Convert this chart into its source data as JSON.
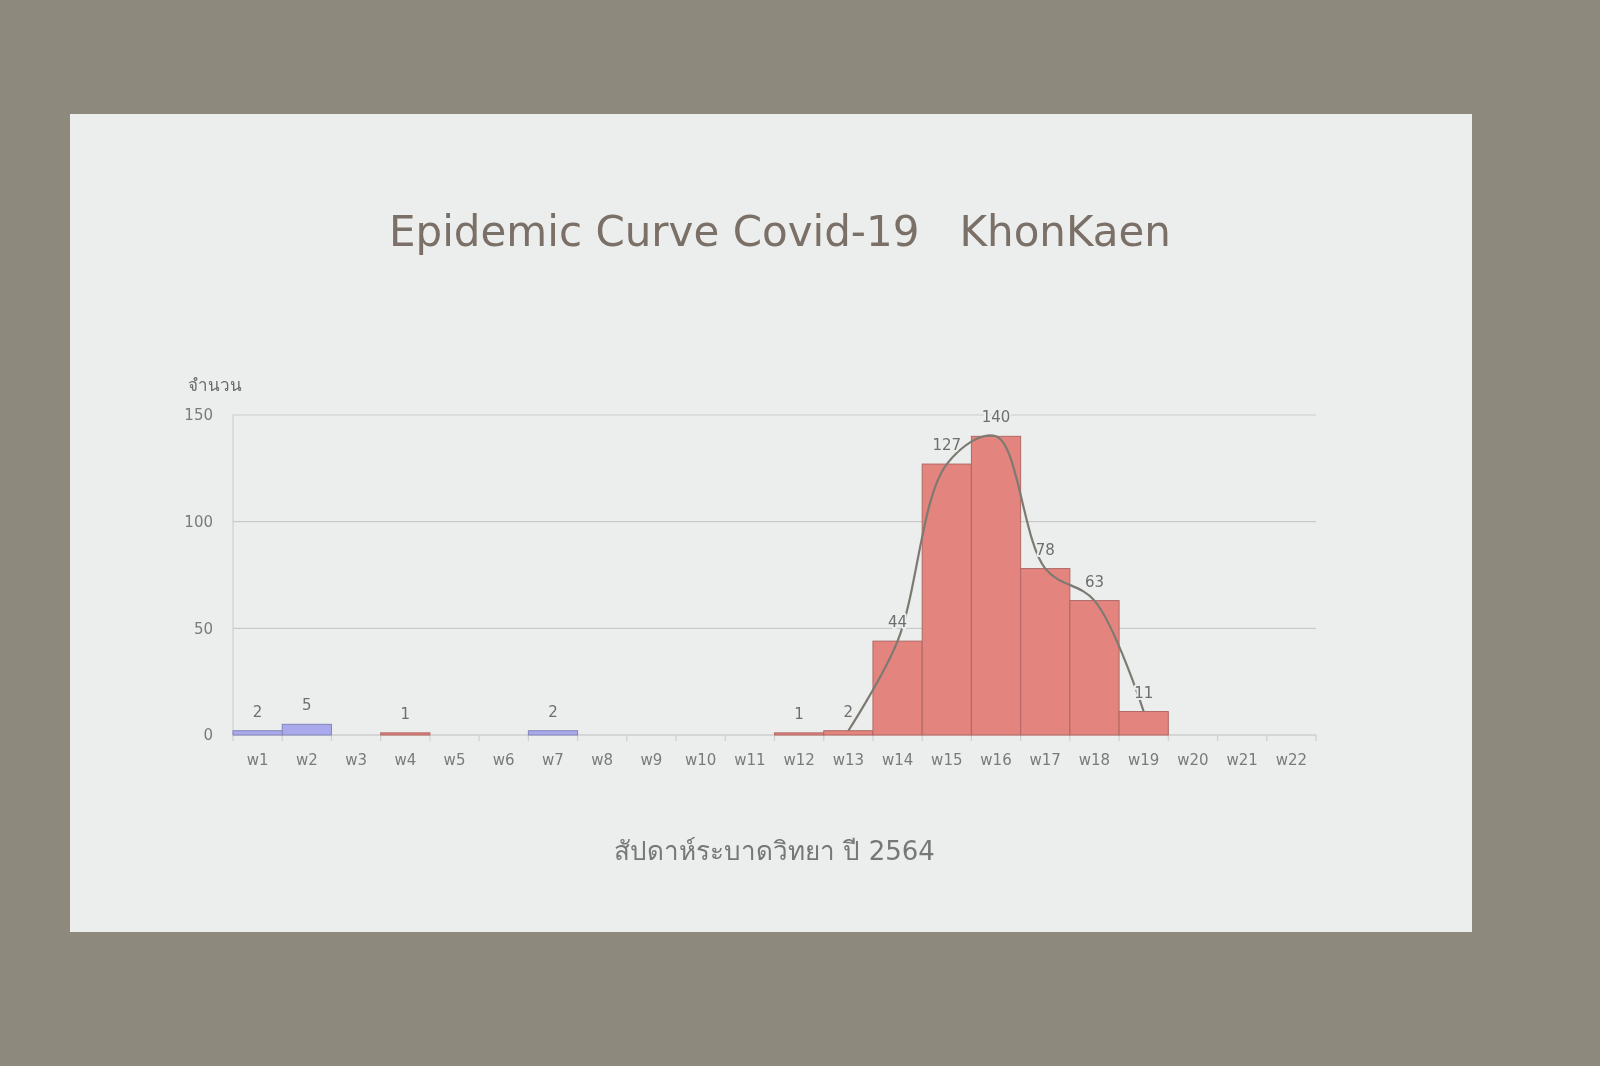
{
  "chart_data": {
    "type": "bar",
    "title": "Epidemic Curve Covid-19   KhonKaen",
    "xlabel": "สัปดาห์ระบาดวิทยา ปี 2564",
    "ylabel": "จำนวน",
    "categories": [
      "w1",
      "w2",
      "w3",
      "w4",
      "w5",
      "w6",
      "w7",
      "w8",
      "w9",
      "w10",
      "w11",
      "w12",
      "w13",
      "w14",
      "w15",
      "w16",
      "w17",
      "w18",
      "w19",
      "w20",
      "w21",
      "w22"
    ],
    "series": [
      {
        "values": [
          2,
          5,
          null,
          1,
          null,
          null,
          2,
          null,
          null,
          null,
          null,
          1,
          2,
          44,
          127,
          140,
          78,
          63,
          11,
          null,
          null,
          null
        ],
        "colors": [
          "#a9a9ec",
          "#a9a9ec",
          null,
          "#e3847f",
          null,
          null,
          "#a9a9ec",
          null,
          null,
          null,
          null,
          "#e3847f",
          "#e3847f",
          "#e3847f",
          "#e3847f",
          "#e3847f",
          "#e3847f",
          "#e3847f",
          "#e3847f",
          null,
          null,
          null
        ],
        "value_labels": [
          "2",
          "5",
          null,
          "1",
          null,
          null,
          "2",
          null,
          null,
          null,
          null,
          "1",
          "2",
          "44",
          "127",
          "140",
          "78",
          "63",
          "11",
          null,
          null,
          null
        ]
      },
      {
        "type": "line",
        "color": "#7d7a72",
        "values": [
          null,
          null,
          null,
          null,
          null,
          null,
          null,
          null,
          null,
          null,
          null,
          null,
          2,
          44,
          127,
          140,
          78,
          63,
          11,
          null,
          null,
          null
        ]
      }
    ],
    "ylim": [
      0,
      150
    ],
    "yticks": [
      0,
      50,
      100,
      150
    ],
    "grid": "y"
  }
}
